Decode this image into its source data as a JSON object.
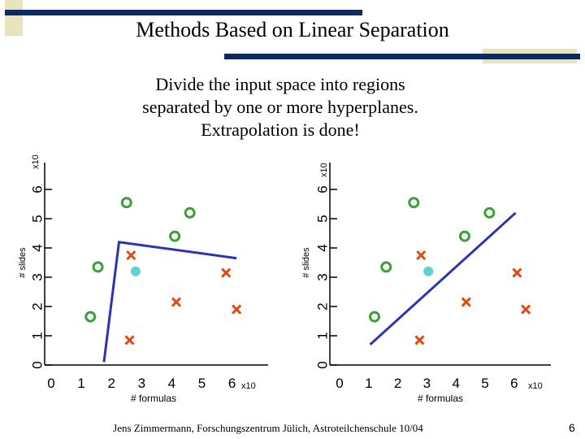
{
  "slide": {
    "title": "Methods Based on Linear Separation",
    "subtitle_lines": [
      "Divide the input space into regions",
      "separated by one or more hyperplanes.",
      "Extrapolation is done!"
    ],
    "footer": "Jens Zimmermann, Forschungszentrum Jülich, Astroteilchenschule 10/04",
    "page_number": "6"
  },
  "colors": {
    "navy": "#0c2a5e",
    "olive": "#e6e4b8",
    "circle": "#3aa035",
    "cross": "#e04a12",
    "query": "#5fd1d0",
    "line": "#2a32b8"
  },
  "chart_data": [
    {
      "type": "scatter",
      "title": "",
      "xlabel": "# formulas",
      "ylabel": "# slides",
      "x_multiplier": "x10",
      "y_multiplier": "x10",
      "xlim": [
        0,
        6
      ],
      "ylim": [
        0,
        6
      ],
      "xticks": [
        "0",
        "1",
        "2",
        "3",
        "4",
        "5",
        "6"
      ],
      "yticks": [
        "0",
        "1",
        "2",
        "3",
        "4",
        "5",
        "6"
      ],
      "circles": [
        [
          1.3,
          1.65
        ],
        [
          1.55,
          3.35
        ],
        [
          2.5,
          5.55
        ],
        [
          4.1,
          4.4
        ],
        [
          4.6,
          5.2
        ]
      ],
      "crosses": [
        [
          2.65,
          3.75
        ],
        [
          2.6,
          0.85
        ],
        [
          4.15,
          2.15
        ],
        [
          5.8,
          3.15
        ],
        [
          6.15,
          1.9
        ]
      ],
      "query_point": [
        2.8,
        3.2
      ],
      "separator": [
        [
          1.75,
          0.1
        ],
        [
          2.25,
          4.2
        ],
        [
          6.15,
          3.65
        ]
      ]
    },
    {
      "type": "scatter",
      "title": "",
      "xlabel": "# formulas",
      "ylabel": "# slides",
      "x_multiplier": "x10",
      "y_multiplier": "x10",
      "xlim": [
        0,
        6
      ],
      "ylim": [
        0,
        6
      ],
      "xticks": [
        "0",
        "1",
        "2",
        "3",
        "4",
        "5",
        "6"
      ],
      "yticks": [
        "0",
        "1",
        "2",
        "3",
        "4",
        "5",
        "6"
      ],
      "circles": [
        [
          1.2,
          1.65
        ],
        [
          1.6,
          3.35
        ],
        [
          2.55,
          5.55
        ],
        [
          4.3,
          4.4
        ],
        [
          5.15,
          5.2
        ]
      ],
      "crosses": [
        [
          2.8,
          3.75
        ],
        [
          2.75,
          0.85
        ],
        [
          4.35,
          2.15
        ],
        [
          6.1,
          3.15
        ],
        [
          6.4,
          1.9
        ]
      ],
      "query_point": [
        3.05,
        3.2
      ],
      "separator": [
        [
          1.05,
          0.7
        ],
        [
          6.05,
          5.2
        ]
      ]
    }
  ]
}
